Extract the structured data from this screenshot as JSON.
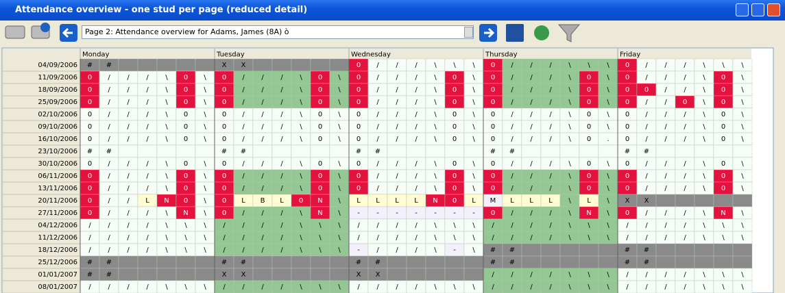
{
  "window": {
    "title": "Attendance overview - one stud per page (reduced detail)"
  },
  "toolbar": {
    "page_select": "Page 2: Attendance overview for Adams, James (8A)  ò"
  },
  "grid": {
    "days": [
      "Monday",
      "Tuesday",
      "Wednesday",
      "Thursday",
      "Friday"
    ],
    "palette": {
      "w": "#f6fcf6",
      "g": "#94c794",
      "r": "#e3123e",
      "k": "#8a8a8a",
      "y": "#fffbd2",
      "p": "#f2f0fa"
    },
    "rows": [
      {
        "date": "04/09/2006",
        "colors": "kkkkkkkkkkkkkkrwwwwwwrggggggrwwwwww",
        "cells": [
          "#",
          "#",
          "",
          "",
          "",
          "",
          "",
          "X",
          "X",
          "",
          "",
          "",
          "",
          "",
          "0",
          "/",
          "/",
          "/",
          "\\",
          "\\",
          "\\",
          "0",
          "/",
          "/",
          "/",
          "\\",
          "\\",
          "\\",
          "0",
          "/",
          "/",
          "/",
          "\\",
          "\\",
          "\\"
        ]
      },
      {
        "date": "11/09/2006",
        "colors": "rwwwwrwrggggrgrwwwwrwrggggrgrwwwwrw",
        "cells": [
          "0",
          "/",
          "/",
          "/",
          "\\",
          "0",
          "\\",
          "0",
          "/",
          "/",
          "/",
          "\\",
          "0",
          "\\",
          "0",
          "/",
          "/",
          "/",
          "\\",
          "0",
          "\\",
          "0",
          "/",
          "/",
          "/",
          "\\",
          "0",
          "\\",
          "0",
          "/",
          "/",
          "/",
          "\\",
          "0",
          "\\"
        ]
      },
      {
        "date": "18/09/2006",
        "colors": "rwwwwrwrggggrgrwwwwrwrggggrgrrwwwrw",
        "cells": [
          "0",
          "/",
          "/",
          "/",
          "\\",
          "0",
          "\\",
          "0",
          "/",
          "/",
          "/",
          "\\",
          "0",
          "\\",
          "0",
          "/",
          "/",
          "/",
          "\\",
          "0",
          "\\",
          "0",
          "/",
          "/",
          "/",
          "\\",
          "0",
          "\\",
          "0",
          "0",
          "/",
          "/",
          "\\",
          "0",
          "\\"
        ]
      },
      {
        "date": "25/09/2006",
        "colors": "rwwwwrwrggggrgrwwwwrwrggggrgrwwrwrw",
        "cells": [
          "0",
          "/",
          "/",
          "/",
          "\\",
          "0",
          "\\",
          "0",
          "/",
          "/",
          "/",
          "\\",
          "0",
          "\\",
          "0",
          "/",
          "/",
          "/",
          "\\",
          "0",
          "\\",
          "0",
          "/",
          "/",
          "/",
          "\\",
          "0",
          "\\",
          "0",
          "/",
          "/",
          "0",
          "\\",
          "0",
          "\\"
        ]
      },
      {
        "date": "02/10/2006",
        "colors": "wwwwwwwwwwwwwwwwwwwwwwwwwwwwwwwwwww",
        "cells": [
          "0",
          "/",
          "/",
          "/",
          "\\",
          "0",
          "\\",
          "0",
          "/",
          "/",
          "/",
          "\\",
          "0",
          "\\",
          "0",
          "/",
          "/",
          "/",
          "\\",
          "0",
          "\\",
          "0",
          "/",
          "/",
          "/",
          "\\",
          "0",
          "\\",
          "0",
          "/",
          "/",
          "/",
          "\\",
          "0",
          "\\"
        ]
      },
      {
        "date": "09/10/2006",
        "colors": "wwwwwwwwwwwwwwwwwwwwwwwwwwwwwwwwwww",
        "cells": [
          "0",
          "/",
          "/",
          "/",
          "\\",
          "0",
          "\\",
          "0",
          "/",
          "/",
          "/",
          "\\",
          "0",
          "\\",
          "0",
          "/",
          "/",
          "/",
          "\\",
          "0",
          "\\",
          "0",
          "/",
          "/",
          "/",
          "\\",
          "0",
          "\\",
          "0",
          "/",
          "/",
          "/",
          "\\",
          "0",
          "\\"
        ]
      },
      {
        "date": "16/10/2006",
        "colors": "wwwwwwwwwwwwwwwwwwwwwwwwwwwwwwwwwww",
        "cells": [
          "0",
          "/",
          "/",
          "/",
          "\\",
          "0",
          "\\",
          "0",
          "/",
          "/",
          "/",
          "\\",
          "0",
          "\\",
          "0",
          "/",
          "/",
          "/",
          "\\",
          "0",
          "\\",
          "0",
          "/",
          "/",
          "/",
          "\\",
          "0",
          ".",
          "0",
          "/",
          "/",
          "/",
          "\\",
          "0",
          "\\"
        ]
      },
      {
        "date": "23/10/2006",
        "colors": "wwwwwwwwwwwwwwwwwwwwwwwwwwwwwwwwwww",
        "cells": [
          "#",
          "#",
          "",
          "",
          "",
          "",
          "",
          "#",
          "#",
          "",
          "",
          "",
          "",
          "",
          "#",
          "#",
          "",
          "",
          "",
          "",
          "",
          "#",
          "#",
          "",
          "",
          "",
          "",
          "",
          "#",
          "#",
          "",
          "",
          "",
          "",
          ""
        ]
      },
      {
        "date": "30/10/2006",
        "colors": "wwwwwwwwwwwwwwwwwwwwwwwwwwwwwwwwwww",
        "cells": [
          "0",
          "/",
          "/",
          "/",
          "\\",
          "0",
          "\\",
          "0",
          "/",
          "/",
          "/",
          "\\",
          "0",
          "\\",
          "0",
          "/",
          "/",
          "/",
          "\\",
          "0",
          "\\",
          "0",
          "/",
          "/",
          "/",
          "\\",
          "0",
          "\\",
          "0",
          "/",
          "/",
          "/",
          "\\",
          "0",
          "\\"
        ]
      },
      {
        "date": "06/11/2006",
        "colors": "rwwwwrwrggggrgrwwwwrwrggggrgrwwwwrw",
        "cells": [
          "0",
          "/",
          "/",
          "/",
          "\\",
          "0",
          "\\",
          "0",
          "/",
          "/",
          "/",
          "\\",
          "0",
          "\\",
          "0",
          "/",
          "/",
          "/",
          "\\",
          "0",
          "\\",
          "0",
          "/",
          "/",
          "/",
          "\\",
          "0",
          "\\",
          "0",
          "/",
          "/",
          "/",
          "\\",
          "0",
          "\\"
        ]
      },
      {
        "date": "13/11/2006",
        "colors": "rwwwwrwrggggrgrwwwwrwrggggrgrwwwwrw",
        "cells": [
          "0",
          "/",
          "/",
          "/",
          "\\",
          "0",
          "\\",
          "0",
          "/",
          "/",
          "/",
          "\\",
          "0",
          "\\",
          "0",
          "/",
          "/",
          "/",
          "\\",
          "0",
          "\\",
          "0",
          "/",
          "/",
          "/",
          "\\",
          "0",
          "\\",
          "0",
          "/",
          "/",
          "/",
          "\\",
          "0",
          "\\"
        ]
      },
      {
        "date": "20/11/2006",
        "colors": "rwwyrrwryyyrrgyyyyrrypyyygygkkkkkkk",
        "cells": [
          "0",
          "/",
          "/",
          "L",
          "N",
          "0",
          "\\",
          "0",
          "L",
          "B",
          "L",
          "0",
          "N",
          "\\",
          "L",
          "L",
          "L",
          "L",
          "N",
          "0",
          "L",
          "M",
          "L",
          "L",
          "L",
          "\\",
          "L",
          "\\",
          "X",
          "X",
          "",
          "",
          "",
          "",
          ""
        ]
      },
      {
        "date": "27/11/2006",
        "colors": "rwwwwrwrggggrgppppppprggggrgrwwwwrw",
        "cells": [
          "0",
          "/",
          "/",
          "/",
          "\\",
          "N",
          "\\",
          "0",
          "/",
          "/",
          "/",
          "\\",
          "N",
          "\\",
          "-",
          "-",
          "-",
          "-",
          "-",
          "-",
          "-",
          "0",
          "/",
          "/",
          "/",
          "\\",
          "N",
          "\\",
          "0",
          "/",
          "/",
          "/",
          "\\",
          "N",
          "\\"
        ]
      },
      {
        "date": "04/12/2006",
        "colors": "wwwwwwwgggggggwwwwwwwgggggggwwwwwww",
        "cells": [
          "/",
          "/",
          "/",
          "/",
          "\\",
          "\\",
          "\\",
          "/",
          "/",
          "/",
          "/",
          "\\",
          "\\",
          "\\",
          "/",
          "/",
          "/",
          "/",
          "\\",
          "\\",
          "\\",
          "/",
          "/",
          "/",
          "/",
          "\\",
          "\\",
          "\\",
          "/",
          "/",
          "/",
          "/",
          "\\",
          "\\",
          "\\"
        ]
      },
      {
        "date": "11/12/2006",
        "colors": "wwwwwwwgggggggwwwwwwwgggggggwwwwwww",
        "cells": [
          "/",
          "/",
          "/",
          "/",
          "\\",
          "\\",
          "\\",
          "/",
          "/",
          "/",
          "/",
          "\\",
          "\\",
          "\\",
          "/",
          "/",
          "/",
          "/",
          "\\",
          "\\",
          "\\",
          "/",
          "/",
          "/",
          "/",
          "\\",
          "\\",
          "\\",
          "/",
          "/",
          "/",
          "/",
          "\\",
          "\\",
          "\\"
        ]
      },
      {
        "date": "18/12/2006",
        "colors": "wwwwwwwgggggggpwwwwpwkkkkkkkkkkkkkk",
        "cells": [
          "/",
          "/",
          "/",
          "/",
          "\\",
          "\\",
          "\\",
          "/",
          "/",
          "/",
          "/",
          "\\",
          "\\",
          "\\",
          "-",
          "/",
          "/",
          "/",
          "\\",
          "-",
          "\\",
          "#",
          "#",
          "",
          "",
          "",
          "",
          "",
          "#",
          "#",
          "",
          "",
          "",
          "",
          ""
        ]
      },
      {
        "date": "25/12/2006",
        "colors": "kkkkkkkkkkkkkkkkkkkkkkkkkkkkkkkkkkk",
        "cells": [
          "#",
          "#",
          "",
          "",
          "",
          "",
          "",
          "#",
          "#",
          "",
          "",
          "",
          "",
          "",
          "#",
          "#",
          "",
          "",
          "",
          "",
          "",
          "#",
          "#",
          "",
          "",
          "",
          "",
          "",
          "#",
          "#",
          "",
          "",
          "",
          "",
          ""
        ]
      },
      {
        "date": "01/01/2007",
        "colors": "kkkkkkkkkkkkkkkkkkkkkgggggggwwwwwww",
        "cells": [
          "#",
          "#",
          "",
          "",
          "",
          "",
          "",
          "X",
          "X",
          "",
          "",
          "",
          "",
          "",
          "X",
          "X",
          "",
          "",
          "",
          "",
          "",
          "/",
          "/",
          "/",
          "/",
          "\\",
          "\\",
          "\\",
          "/",
          "/",
          "/",
          "/",
          "\\",
          "\\",
          "\\"
        ]
      },
      {
        "date": "08/01/2007",
        "colors": "wwwwwwwgggggggwwwwwwwgggggggwwwwwww",
        "cells": [
          "/",
          "/",
          "/",
          "/",
          "\\",
          "\\",
          "\\",
          "/",
          "/",
          "/",
          "/",
          "\\",
          "\\",
          "\\",
          "/",
          "/",
          "/",
          "/",
          "\\",
          "\\",
          "\\",
          "/",
          "/",
          "/",
          "/",
          "\\",
          "\\",
          "\\",
          "/",
          "/",
          "/",
          "/",
          "\\",
          "\\",
          "\\"
        ]
      }
    ]
  }
}
